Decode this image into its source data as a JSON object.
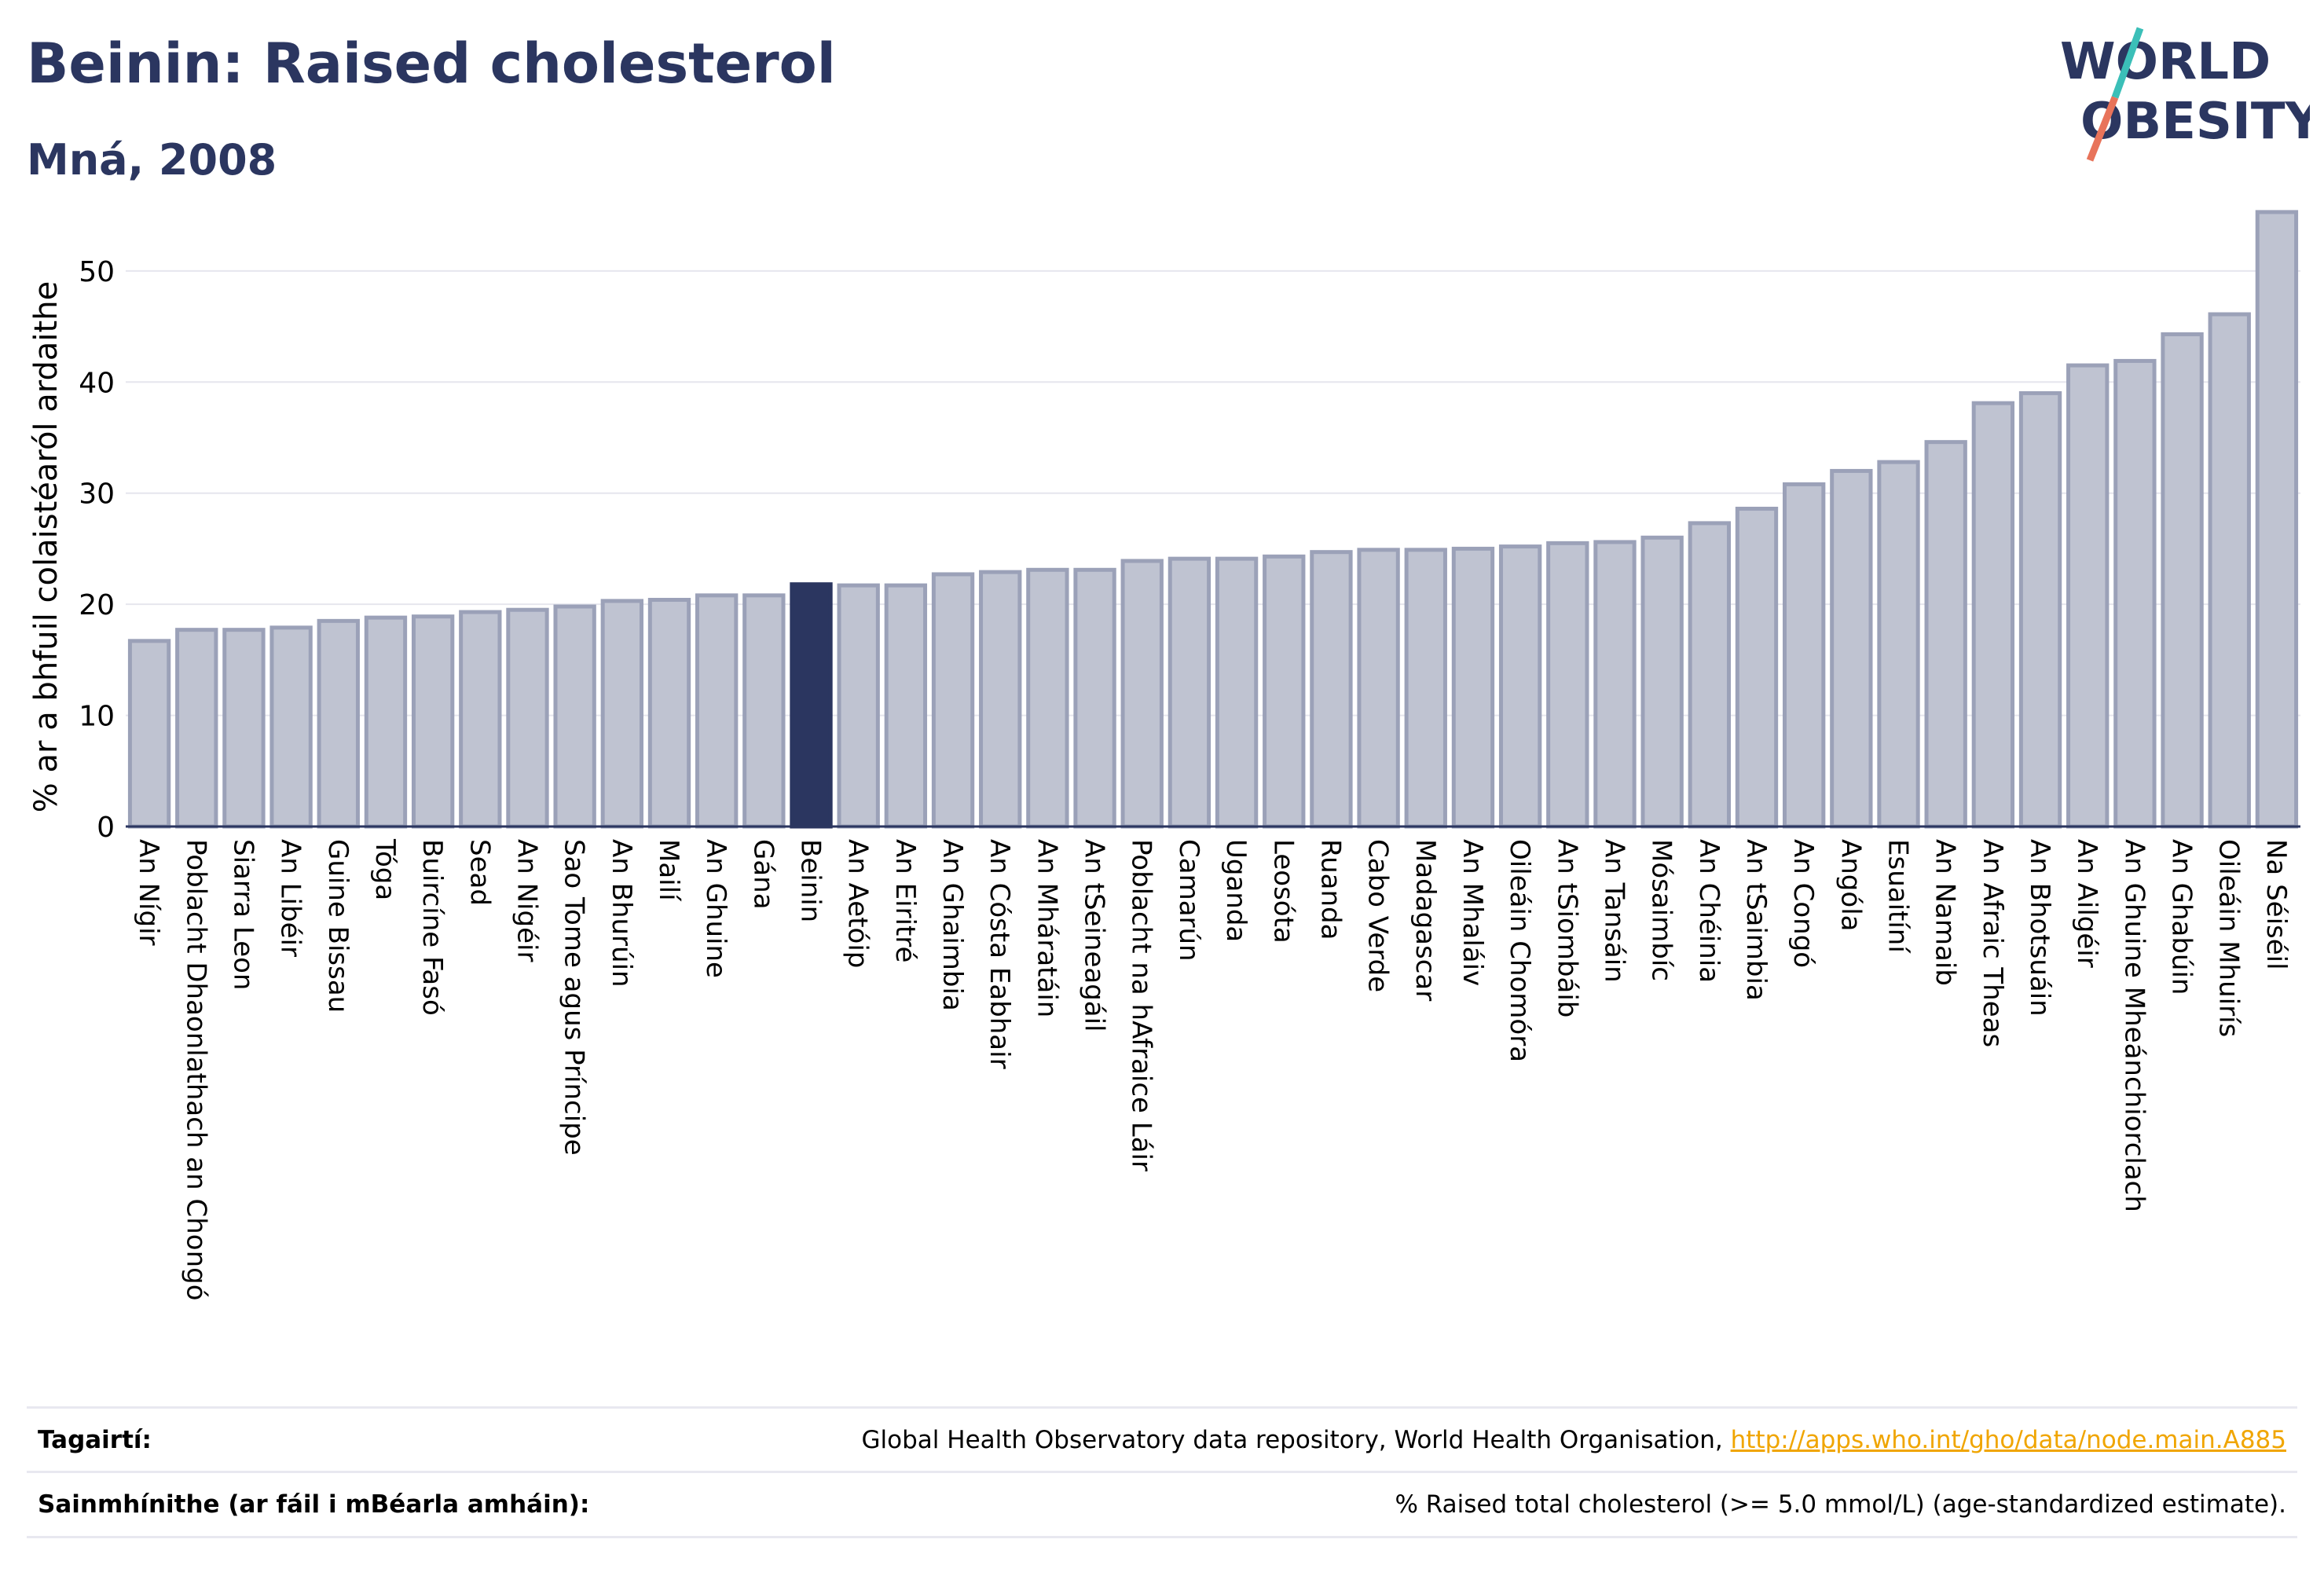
{
  "header": {
    "title": "Beinin: Raised cholesterol",
    "subtitle": "Mná, 2008"
  },
  "logo": {
    "line1": "WORLD",
    "line2": "OBESITY",
    "color_text": "#2b3660",
    "color_slash_top": "#3bbfb8",
    "color_slash_bottom": "#e8735a"
  },
  "footer": {
    "references_label": "Tagairtí:",
    "references_text": "Global Health Observatory data repository, World Health Organisation, ",
    "references_link": "http://apps.who.int/gho/data/node.main.A885",
    "definitions_label": "Sainmhínithe (ar fáil i mBéarla amháin):",
    "definitions_text": "% Raised total cholesterol (>= 5.0 mmol/L) (age-standardized estimate)."
  },
  "chart_data": {
    "type": "bar",
    "ylabel": "% ar a bhfuil colaistéaról ardaithe",
    "ylim": [
      0,
      56
    ],
    "yticks": [
      0,
      10,
      20,
      30,
      40,
      50
    ],
    "grid": true,
    "highlight": "Beinin",
    "colors": {
      "bar": "#bfc3d1",
      "bar_edge": "#9ba1b8",
      "highlight": "#2b3660"
    },
    "categories": [
      "An Nígir",
      "Poblacht Dhaonlathach an Chongó",
      "Siarra Leon",
      "An Libéir",
      "Guine Bissau",
      "Tóga",
      "Buircíne Fasó",
      "Sead",
      "An Nigéir",
      "Sao Tome agus Príncipe",
      "An Bhurúin",
      "Mailí",
      "An Ghuine",
      "Gána",
      "Beinin",
      "An Aetóip",
      "An Eiritré",
      "An Ghaimbia",
      "An Cósta Eabhair",
      "An Mháratáin",
      "An tSeineagáil",
      "Poblacht na hAfraice Láir",
      "Camarún",
      "Uganda",
      "Leosóta",
      "Ruanda",
      "Cabo Verde",
      "Madagascar",
      "An Mhaláiv",
      "Oileáin Chomóra",
      "An tSiombáib",
      "An Tansáin",
      "Mósaimbíc",
      "An Chéinia",
      "An tSaimbia",
      "An Congó",
      "Angóla",
      "Esuaitíní",
      "An Namaib",
      "An Afraic Theas",
      "An Bhotsuáin",
      "An Ailgéir",
      "An Ghuine Mheánchiorclach",
      "An Ghabúin",
      "Oileáin Mhuirís",
      "Na Séiséil"
    ],
    "values": [
      16.7,
      17.7,
      17.7,
      17.9,
      18.5,
      18.8,
      18.9,
      19.3,
      19.5,
      19.8,
      20.3,
      20.4,
      20.8,
      20.8,
      21.8,
      21.7,
      21.7,
      22.7,
      22.9,
      23.1,
      23.1,
      23.9,
      24.1,
      24.1,
      24.3,
      24.7,
      24.9,
      24.9,
      25.0,
      25.2,
      25.5,
      25.6,
      26.0,
      27.3,
      28.6,
      30.8,
      32.0,
      32.8,
      34.6,
      38.1,
      39.0,
      41.5,
      41.9,
      44.3,
      46.1,
      55.3
    ]
  }
}
